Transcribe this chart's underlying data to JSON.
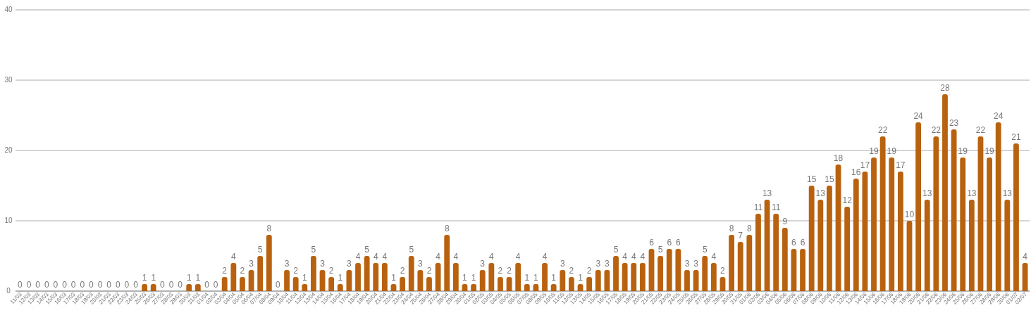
{
  "chart_data": {
    "type": "bar",
    "categories": [
      "11/03",
      "12/03",
      "13/03",
      "14/03",
      "15/03",
      "16/03",
      "17/03",
      "18/03",
      "19/03",
      "20/03",
      "21/03",
      "22/03",
      "23/03",
      "24/03",
      "25/03",
      "26/03",
      "27/03",
      "28/03",
      "29/03",
      "30/03",
      "31/03",
      "01/04",
      "02/04",
      "03/04",
      "04/04",
      "05/04",
      "06/04",
      "07/04",
      "08/04",
      "09/04",
      "10/04",
      "11/04",
      "12/04",
      "13/04",
      "14/04",
      "15/04",
      "16/04",
      "17/04",
      "18/04",
      "19/04",
      "20/04",
      "21/04",
      "22/04",
      "23/04",
      "24/04",
      "25/04",
      "26/04",
      "27/04",
      "28/04",
      "29/04",
      "30/04",
      "01/05",
      "02/05",
      "03/05",
      "04/05",
      "05/05",
      "06/05",
      "07/05",
      "08/05",
      "09/05",
      "10/05",
      "11/05",
      "12/05",
      "13/05",
      "14/05",
      "15/05",
      "16/05",
      "17/05",
      "18/05",
      "19/05",
      "20/05",
      "21/05",
      "22/05",
      "23/05",
      "24/05",
      "25/05",
      "26/05",
      "27/05",
      "28/05",
      "29/05",
      "30/05",
      "31/05",
      "01/06",
      "02/06",
      "03/06",
      "04/06",
      "05/06",
      "06/06",
      "07/06",
      "08/06",
      "09/06",
      "10/06",
      "11/06",
      "12/06",
      "13/06",
      "14/06",
      "15/06",
      "16/06",
      "17/06",
      "18/06",
      "19/06",
      "20/06",
      "21/06",
      "22/06",
      "23/06",
      "24/06",
      "25/06",
      "26/06",
      "27/06",
      "28/06",
      "29/06",
      "30/06",
      "01/07",
      "02/07"
    ],
    "values": [
      0,
      0,
      0,
      0,
      0,
      0,
      0,
      0,
      0,
      0,
      0,
      0,
      0,
      0,
      1,
      1,
      0,
      0,
      0,
      1,
      1,
      0,
      0,
      2,
      4,
      2,
      3,
      5,
      8,
      0,
      3,
      2,
      1,
      5,
      3,
      2,
      1,
      3,
      4,
      5,
      4,
      4,
      1,
      2,
      5,
      3,
      2,
      4,
      8,
      4,
      1,
      1,
      3,
      4,
      2,
      2,
      4,
      1,
      1,
      4,
      1,
      3,
      2,
      1,
      2,
      3,
      3,
      5,
      4,
      4,
      4,
      6,
      5,
      6,
      6,
      3,
      3,
      5,
      4,
      2,
      8,
      7,
      8,
      11,
      13,
      11,
      9,
      6,
      6,
      15,
      13,
      15,
      18,
      12,
      16,
      17,
      19,
      22,
      19,
      17,
      10,
      24,
      13,
      22,
      28,
      23,
      19,
      13,
      22,
      19,
      24,
      13,
      21,
      4
    ],
    "color": "#b8610e",
    "ylim": [
      0,
      40
    ],
    "yticks": [
      0,
      10,
      20,
      30,
      40
    ],
    "grid": "y",
    "data_labels": true
  }
}
